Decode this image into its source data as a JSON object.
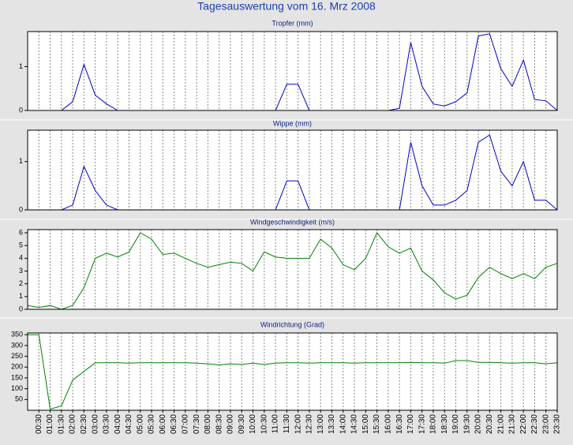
{
  "title": "Tagesauswertung vom 16. Mrz 2008",
  "chart_data": [
    {
      "type": "line",
      "title": "Tropfer (mm)",
      "color": "#0000c8",
      "values": [
        0,
        0,
        0,
        0,
        0.2,
        1.05,
        0.35,
        0.15,
        0,
        0,
        0,
        0,
        0,
        0,
        0,
        0,
        0,
        0,
        0,
        0,
        0,
        0,
        0,
        0.6,
        0.6,
        0,
        0,
        0,
        0,
        0,
        0,
        0,
        0,
        0.05,
        1.55,
        0.55,
        0.15,
        0.1,
        0.2,
        0.4,
        1.7,
        1.75,
        0.95,
        0.55,
        1.15,
        0.25,
        0.22,
        0
      ],
      "ylim": [
        0,
        1.8
      ],
      "yticks": [
        0,
        1
      ],
      "grid": "x"
    },
    {
      "type": "line",
      "title": "Wippe (mm)",
      "color": "#0000c8",
      "values": [
        0,
        0,
        0,
        0,
        0.1,
        0.9,
        0.4,
        0.1,
        0,
        0,
        0,
        0,
        0,
        0,
        0,
        0,
        0,
        0,
        0,
        0,
        0,
        0,
        0,
        0.6,
        0.6,
        0,
        0,
        0,
        0,
        0,
        0,
        0,
        0,
        0,
        1.4,
        0.5,
        0.1,
        0.1,
        0.2,
        0.4,
        1.4,
        1.55,
        0.8,
        0.5,
        1.0,
        0.2,
        0.2,
        0
      ],
      "ylim": [
        0,
        1.65
      ],
      "yticks": [
        0,
        1
      ],
      "grid": "x"
    },
    {
      "type": "line",
      "title": "Windgeschwindigkeit (m/s)",
      "color": "#008000",
      "values": [
        0.3,
        0.15,
        0.3,
        0,
        0.3,
        1.7,
        4.0,
        4.4,
        4.1,
        4.5,
        6.0,
        5.5,
        4.3,
        4.4,
        4.0,
        3.6,
        3.3,
        3.5,
        3.7,
        3.6,
        3.0,
        4.5,
        4.1,
        4.0,
        4.0,
        4.0,
        5.5,
        4.8,
        3.5,
        3.1,
        4.0,
        6.0,
        4.9,
        4.4,
        4.8,
        3.0,
        2.3,
        1.3,
        0.8,
        1.1,
        2.5,
        3.3,
        2.8,
        2.4,
        2.8,
        2.4,
        3.3,
        3.6
      ],
      "ylim": [
        0,
        6.25
      ],
      "yticks": [
        0,
        1,
        2,
        3,
        4,
        5,
        6
      ],
      "grid": "x"
    },
    {
      "type": "line",
      "title": "Windrichtung (Grad)",
      "color": "#008000",
      "values": [
        350,
        350,
        5,
        20,
        140,
        180,
        220,
        220,
        220,
        218,
        220,
        220,
        220,
        220,
        220,
        218,
        215,
        210,
        215,
        212,
        218,
        212,
        218,
        220,
        220,
        218,
        220,
        220,
        220,
        218,
        220,
        220,
        220,
        220,
        222,
        220,
        220,
        218,
        230,
        230,
        222,
        222,
        220,
        218,
        220,
        220,
        215,
        220
      ],
      "ylim": [
        0,
        358
      ],
      "yticks": [
        50,
        100,
        150,
        200,
        250,
        300,
        350
      ],
      "grid": "x",
      "categories": [
        null,
        "00:30",
        "01:00",
        "01:30",
        "02:00",
        "02:30",
        "03:00",
        "03:30",
        "04:00",
        "04:30",
        "05:00",
        "05:30",
        "06:00",
        "06:30",
        "07:00",
        "07:30",
        "08:00",
        "08:30",
        "09:00",
        "09:30",
        "10:00",
        "10:30",
        "11:00",
        "11:30",
        "12:00",
        "12:30",
        "13:00",
        "13:30",
        "14:00",
        "14:30",
        "15:00",
        "15:30",
        "16:00",
        "16:30",
        "17:00",
        "17:30",
        "18:00",
        "18:30",
        "19:00",
        "19:30",
        "20:00",
        "20:30",
        "21:00",
        "21:30",
        "22:00",
        "22:30",
        "23:00",
        "23:30"
      ]
    }
  ]
}
